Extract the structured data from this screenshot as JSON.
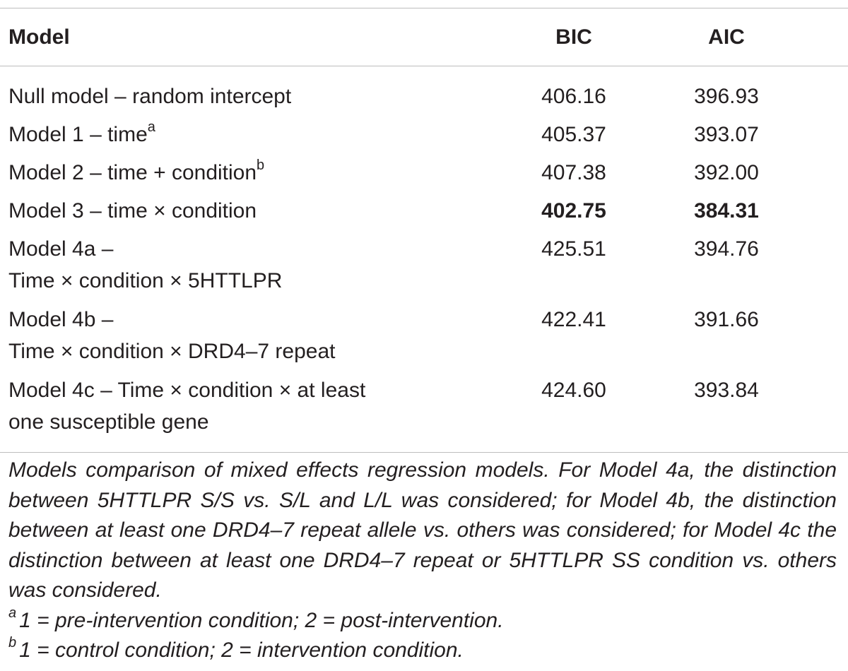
{
  "table": {
    "headers": {
      "model": "Model",
      "bic": "BIC",
      "aic": "AIC"
    },
    "rows": [
      {
        "model_line1": "Null model – random intercept",
        "model_sup": "",
        "model_line2": "",
        "bic": "406.16",
        "aic": "396.93",
        "highlight": false
      },
      {
        "model_line1": "Model 1 – time",
        "model_sup": "a",
        "model_line2": "",
        "bic": "405.37",
        "aic": "393.07",
        "highlight": false
      },
      {
        "model_line1": "Model 2 – time + condition",
        "model_sup": "b",
        "model_line2": "",
        "bic": "407.38",
        "aic": "392.00",
        "highlight": false
      },
      {
        "model_line1": "Model 3 – time × condition",
        "model_sup": "",
        "model_line2": "",
        "bic": "402.75",
        "aic": "384.31",
        "highlight": true
      },
      {
        "model_line1": "Model 4a –",
        "model_sup": "",
        "model_line2": "Time × condition × 5HTTLPR",
        "bic": "425.51",
        "aic": "394.76",
        "highlight": false
      },
      {
        "model_line1": "Model 4b –",
        "model_sup": "",
        "model_line2": "Time × condition × DRD4–7 repeat",
        "bic": "422.41",
        "aic": "391.66",
        "highlight": false
      },
      {
        "model_line1": "Model 4c – Time × condition × at least",
        "model_sup": "",
        "model_line2": "one susceptible gene",
        "bic": "424.60",
        "aic": "393.84",
        "highlight": false
      }
    ]
  },
  "notes": {
    "caption": "Models comparison of mixed effects regression models. For Model 4a, the distinction between 5HTTLPR S/S vs. S/L and L/L was considered; for Model 4b, the distinction between at least one DRD4–7 repeat allele vs. others was considered; for Model 4c the distinction between at least one DRD4–7 repeat or 5HTTLPR SS condition vs. others was considered.",
    "footnotes": [
      {
        "mark": "a",
        "text": "1 = pre-intervention condition; 2 = post-intervention."
      },
      {
        "mark": "b",
        "text": "1 = control condition; 2 = intervention condition."
      }
    ]
  }
}
